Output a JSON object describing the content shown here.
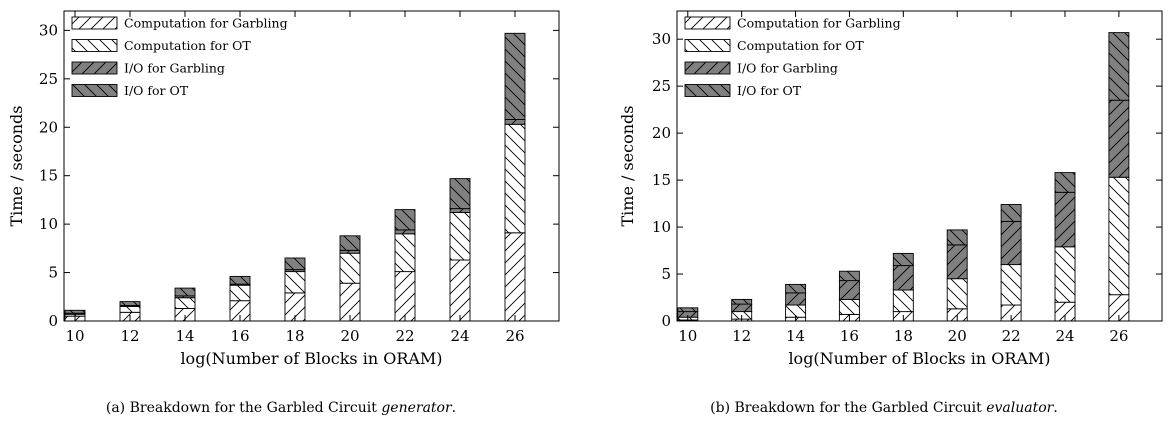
{
  "chart_data": [
    {
      "type": "bar",
      "stacked": true,
      "title": "",
      "xlabel": "log(Number of Blocks in ORAM)",
      "ylabel": "Time / seconds",
      "ylim": [
        0,
        32
      ],
      "xlim": [
        9.6,
        27.6
      ],
      "x_ticks": [
        10,
        12,
        14,
        16,
        18,
        20,
        22,
        24,
        26
      ],
      "y_ticks": [
        0,
        5,
        10,
        15,
        20,
        25,
        30
      ],
      "legend_position": "top-left",
      "grid": false,
      "categories": [
        10,
        12,
        14,
        16,
        18,
        20,
        22,
        24,
        26
      ],
      "series": [
        {
          "name": "Computation for Garbling",
          "values": [
            0.5,
            0.9,
            1.3,
            2.1,
            2.9,
            3.9,
            5.1,
            6.3,
            9.1
          ]
        },
        {
          "name": "Computation for OT",
          "values": [
            0.2,
            0.6,
            1.1,
            1.6,
            2.2,
            3.1,
            3.9,
            4.9,
            11.2
          ]
        },
        {
          "name": "I/O for Garbling",
          "values": [
            0.1,
            0.1,
            0.2,
            0.1,
            0.2,
            0.3,
            0.4,
            0.4,
            0.5
          ]
        },
        {
          "name": "I/O for OT",
          "values": [
            0.3,
            0.4,
            0.8,
            0.8,
            1.2,
            1.5,
            2.1,
            3.1,
            8.9
          ]
        }
      ],
      "caption": {
        "prefix": "(a) Breakdown for the Garbled Circuit ",
        "emphasis": "generator",
        "suffix": "."
      }
    },
    {
      "type": "bar",
      "stacked": true,
      "title": "",
      "xlabel": "log(Number of Blocks in ORAM)",
      "ylabel": "Time / seconds",
      "ylim": [
        0,
        33
      ],
      "xlim": [
        9.6,
        27.6
      ],
      "x_ticks": [
        10,
        12,
        14,
        16,
        18,
        20,
        22,
        24,
        26
      ],
      "y_ticks": [
        0,
        5,
        10,
        15,
        20,
        25,
        30
      ],
      "legend_position": "top-left",
      "grid": false,
      "categories": [
        10,
        12,
        14,
        16,
        18,
        20,
        22,
        24,
        26
      ],
      "series": [
        {
          "name": "Computation for Garbling",
          "values": [
            0.1,
            0.2,
            0.4,
            0.7,
            1.0,
            1.3,
            1.7,
            2.0,
            2.8
          ]
        },
        {
          "name": "Computation for OT",
          "values": [
            0.3,
            0.8,
            1.3,
            1.6,
            2.3,
            3.2,
            4.3,
            5.9,
            12.5
          ]
        },
        {
          "name": "I/O for Garbling",
          "values": [
            0.6,
            0.8,
            1.3,
            2.0,
            2.6,
            3.6,
            4.6,
            5.8,
            8.2
          ]
        },
        {
          "name": "I/O for OT",
          "values": [
            0.4,
            0.5,
            0.9,
            1.0,
            1.3,
            1.6,
            1.8,
            2.1,
            7.2
          ]
        }
      ],
      "caption": {
        "prefix": "(b) Breakdown for the Garbled Circuit ",
        "emphasis": "evaluator",
        "suffix": "."
      }
    }
  ]
}
